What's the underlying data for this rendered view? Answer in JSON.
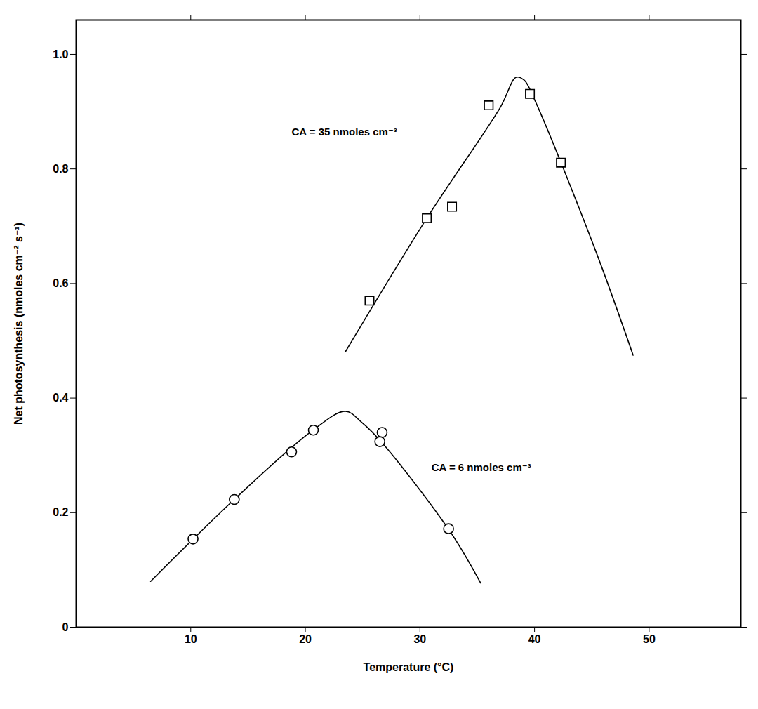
{
  "chart_data": {
    "type": "scatter",
    "x_label": "Temperature (°C)",
    "y_label": "Net photosynthesis (nmoles cm⁻² s⁻¹)",
    "xlim": [
      0,
      58
    ],
    "ylim": [
      0,
      1.06
    ],
    "xticks": [
      10,
      20,
      30,
      40,
      50
    ],
    "yticks": [
      0,
      0.2,
      0.4,
      0.6,
      0.8,
      {
        "value": 1,
        "label": "1.0"
      }
    ],
    "grid": false,
    "series": [
      {
        "name": "CA = 35 nmoles cm⁻³",
        "color": "#000000",
        "marker": "square",
        "x": [
          25.6,
          30.6,
          32.8,
          36.0,
          39.6,
          42.3
        ],
        "values": [
          0.57,
          0.714,
          0.734,
          0.911,
          0.931,
          0.811
        ],
        "fit": {
          "type": "line",
          "line_style": "solid",
          "x": [
            23.5,
            30.6,
            37.0,
            38.4,
            39.1,
            40.0,
            45.2,
            48.6
          ],
          "values": [
            0.481,
            0.714,
            0.907,
            0.96,
            0.955,
            0.921,
            0.664,
            0.475
          ]
        }
      },
      {
        "name": "CA = 6 nmoles cm⁻³",
        "color": "#000000",
        "marker": "circle",
        "x": [
          10.2,
          13.8,
          18.8,
          20.7,
          26.7,
          26.5,
          32.5
        ],
        "values": [
          0.154,
          0.223,
          0.306,
          0.344,
          0.34,
          0.324,
          0.172
        ],
        "fit": {
          "type": "line",
          "line_style": "solid",
          "x": [
            6.5,
            13.8,
            20.6,
            23.5,
            24.9,
            26.7,
            32.7,
            35.3
          ],
          "values": [
            0.08,
            0.223,
            0.343,
            0.377,
            0.358,
            0.322,
            0.165,
            0.077
          ]
        }
      }
    ],
    "annotations": [
      {
        "text": "CA = 35 nmoles cm⁻³",
        "x": 18.8,
        "y": 0.864
      },
      {
        "text": "CA = 6 nmoles cm⁻³",
        "x": 31.0,
        "y": 0.279
      }
    ]
  }
}
